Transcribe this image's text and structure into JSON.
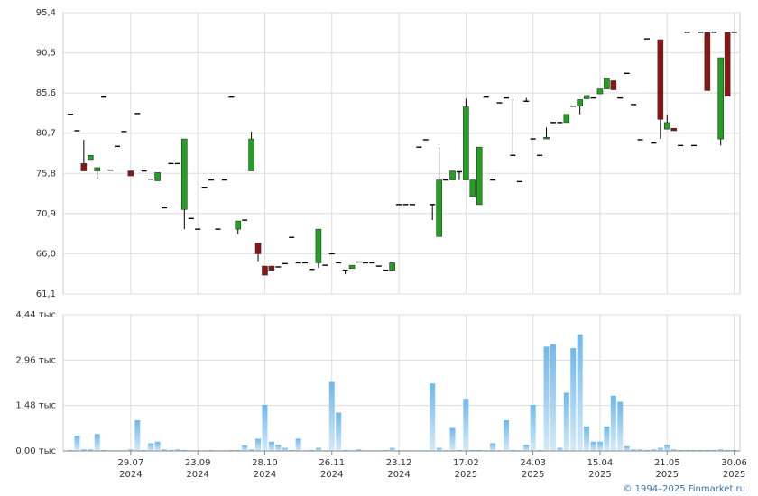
{
  "chart_data": [
    {
      "type": "candlestick",
      "categories": [
        null,
        null,
        null,
        null,
        null,
        null,
        null,
        null,
        null,
        "29.07",
        null,
        null,
        null,
        null,
        null,
        null,
        null,
        null,
        null,
        "23.09",
        null,
        null,
        null,
        null,
        null,
        null,
        null,
        null,
        null,
        "28.10",
        null,
        null,
        null,
        null,
        null,
        null,
        null,
        null,
        null,
        "26.11",
        null,
        null,
        null,
        null,
        null,
        null,
        null,
        null,
        null,
        "23.12",
        null,
        null,
        null,
        null,
        null,
        null,
        null,
        null,
        null,
        "17.02",
        null,
        null,
        null,
        null,
        null,
        null,
        null,
        null,
        null,
        "24.03",
        null,
        null,
        null,
        null,
        null,
        null,
        null,
        null,
        null,
        "15.04",
        null,
        null,
        null,
        null,
        null,
        null,
        null,
        null,
        null,
        "21.05",
        null,
        null,
        null,
        null,
        null,
        null,
        null,
        null,
        null,
        "30.06"
      ],
      "years": [
        null,
        null,
        null,
        null,
        null,
        null,
        null,
        null,
        null,
        "2024",
        null,
        null,
        null,
        null,
        null,
        null,
        null,
        null,
        null,
        "2024",
        null,
        null,
        null,
        null,
        null,
        null,
        null,
        null,
        null,
        "2024",
        null,
        null,
        null,
        null,
        null,
        null,
        null,
        null,
        null,
        "2024",
        null,
        null,
        null,
        null,
        null,
        null,
        null,
        null,
        null,
        "2024",
        null,
        null,
        null,
        null,
        null,
        null,
        null,
        null,
        null,
        "2025",
        null,
        null,
        null,
        null,
        null,
        null,
        null,
        null,
        null,
        "2025",
        null,
        null,
        null,
        null,
        null,
        null,
        null,
        null,
        null,
        "2025",
        null,
        null,
        null,
        null,
        null,
        null,
        null,
        null,
        null,
        "2025",
        null,
        null,
        null,
        null,
        null,
        null,
        null,
        null,
        null,
        "2025"
      ],
      "open": [
        83.0,
        81.0,
        77.0,
        77.5,
        76.1,
        85.1,
        76.2,
        79.1,
        80.9,
        76.1,
        83.1,
        76.1,
        75.1,
        74.9,
        71.6,
        77.0,
        77.0,
        71.4,
        70.3,
        69.0,
        74.1,
        75.0,
        69.0,
        75.0,
        85.1,
        69.0,
        70.1,
        76.1,
        67.3,
        64.5,
        64.5,
        64.4,
        64.8,
        68.0,
        64.9,
        64.9,
        64.1,
        64.9,
        64.6,
        66.0,
        64.9,
        64.0,
        64.2,
        65.0,
        64.9,
        64.9,
        64.5,
        64.0,
        64.0,
        72.0,
        72.0,
        72.0,
        79.0,
        79.9,
        72.0,
        68.1,
        75.0,
        75.0,
        76.0,
        75.0,
        73.0,
        72.0,
        85.1,
        75.0,
        84.4,
        85.0,
        78.0,
        74.8,
        84.6,
        80.0,
        78.0,
        80.0,
        82.0,
        82.0,
        82.0,
        84.0,
        84.0,
        84.9,
        85.0,
        85.5,
        86.1,
        87.1,
        85.0,
        88.0,
        84.2,
        79.9,
        92.2,
        79.5,
        92.1,
        81.2,
        81.3,
        79.2,
        93.0,
        79.2,
        93.0,
        93.0,
        93.0,
        80.0,
        93.0,
        93.0
      ],
      "high": [
        83.0,
        81.0,
        79.9,
        78.0,
        76.5,
        85.1,
        76.2,
        79.1,
        80.9,
        76.1,
        83.1,
        76.1,
        75.1,
        75.9,
        71.6,
        77.0,
        77.0,
        80.0,
        70.3,
        69.0,
        74.1,
        75.0,
        69.0,
        75.0,
        85.1,
        70.0,
        70.1,
        80.9,
        67.3,
        64.5,
        64.5,
        64.4,
        64.8,
        68.0,
        64.9,
        64.9,
        64.1,
        69.0,
        64.6,
        66.0,
        64.9,
        64.0,
        64.6,
        65.0,
        64.9,
        64.9,
        64.5,
        64.0,
        64.9,
        72.0,
        72.0,
        72.0,
        79.0,
        79.9,
        72.0,
        79.0,
        75.0,
        76.1,
        76.0,
        84.9,
        75.0,
        79.0,
        85.1,
        75.0,
        84.4,
        85.0,
        84.9,
        74.8,
        85.0,
        80.0,
        78.0,
        81.4,
        82.0,
        82.0,
        83.0,
        84.0,
        84.8,
        85.3,
        85.0,
        86.1,
        87.4,
        87.1,
        85.0,
        88.0,
        84.2,
        79.9,
        92.2,
        79.5,
        92.1,
        82.9,
        81.3,
        79.2,
        93.0,
        79.2,
        93.0,
        93.0,
        93.0,
        89.9,
        93.0,
        93.0
      ],
      "low": [
        83.0,
        81.0,
        76.1,
        77.5,
        75.1,
        85.1,
        76.2,
        79.1,
        80.9,
        75.5,
        83.1,
        76.1,
        75.1,
        74.9,
        71.6,
        77.0,
        77.0,
        69.0,
        70.3,
        69.0,
        74.1,
        75.0,
        69.0,
        75.0,
        85.1,
        68.4,
        70.1,
        76.1,
        65.1,
        63.4,
        64.0,
        64.4,
        64.8,
        68.0,
        64.9,
        64.9,
        64.1,
        64.3,
        64.6,
        66.0,
        64.9,
        63.5,
        64.2,
        65.0,
        64.9,
        64.9,
        64.5,
        64.0,
        64.0,
        72.0,
        72.0,
        72.0,
        79.0,
        79.9,
        70.1,
        68.1,
        75.0,
        75.0,
        75.0,
        75.0,
        73.0,
        72.0,
        85.1,
        75.0,
        84.4,
        85.0,
        78.0,
        74.8,
        84.6,
        80.0,
        78.0,
        80.0,
        82.0,
        82.0,
        82.0,
        84.0,
        83.0,
        84.9,
        85.0,
        85.5,
        86.1,
        86.0,
        85.0,
        88.0,
        84.2,
        79.9,
        92.2,
        79.5,
        80.0,
        81.2,
        81.0,
        79.2,
        93.0,
        79.2,
        93.0,
        85.9,
        93.0,
        79.2,
        85.2,
        93.0
      ],
      "close": [
        83.0,
        81.0,
        76.1,
        78.0,
        76.5,
        85.1,
        76.2,
        79.1,
        80.9,
        75.5,
        83.1,
        76.1,
        75.1,
        75.9,
        71.6,
        77.0,
        77.0,
        80.0,
        70.3,
        69.0,
        74.1,
        75.0,
        69.0,
        75.0,
        85.1,
        70.0,
        70.1,
        80.0,
        66.0,
        63.4,
        64.0,
        64.4,
        64.8,
        68.0,
        64.9,
        64.9,
        64.1,
        69.0,
        64.6,
        66.0,
        64.9,
        64.0,
        64.6,
        65.0,
        64.9,
        64.9,
        64.5,
        64.0,
        64.9,
        72.0,
        72.0,
        72.0,
        79.0,
        79.9,
        72.0,
        75.0,
        75.0,
        76.1,
        76.0,
        83.9,
        75.0,
        79.0,
        85.1,
        75.0,
        84.4,
        85.0,
        78.0,
        74.8,
        84.6,
        80.0,
        78.0,
        80.2,
        82.0,
        82.0,
        83.0,
        84.0,
        84.8,
        85.3,
        85.0,
        86.1,
        87.4,
        86.0,
        85.0,
        88.0,
        84.2,
        79.9,
        92.2,
        79.5,
        82.4,
        82.0,
        81.0,
        79.2,
        93.0,
        79.2,
        93.0,
        85.9,
        93.0,
        89.9,
        85.2,
        93.0
      ],
      "up_color": "#22a022",
      "down_color": "#8b1414",
      "flat_color": "#000000",
      "ylim": [
        61.1,
        95.4
      ],
      "yticks": [
        {
          "value": 61.1,
          "label": "61,1"
        },
        {
          "value": 66.0,
          "label": "66,0"
        },
        {
          "value": 70.9,
          "label": "70,9"
        },
        {
          "value": 75.8,
          "label": "75,8"
        },
        {
          "value": 80.7,
          "label": "80,7"
        },
        {
          "value": 85.6,
          "label": "85,6"
        },
        {
          "value": 90.5,
          "label": "90,5"
        },
        {
          "value": 95.4,
          "label": "95,4"
        }
      ],
      "grid": true
    },
    {
      "type": "bar",
      "values": [
        0.03,
        0.5,
        0.05,
        0.05,
        0.55,
        0.03,
        0.02,
        0.02,
        0.02,
        0.05,
        1.0,
        0.03,
        0.25,
        0.3,
        0.05,
        0.03,
        0.05,
        0.03,
        0.02,
        0.02,
        0.02,
        0.03,
        0.02,
        0.02,
        0.03,
        0.03,
        0.18,
        0.05,
        0.4,
        1.5,
        0.3,
        0.2,
        0.1,
        0.03,
        0.4,
        0.02,
        0.03,
        0.1,
        0.02,
        2.25,
        1.25,
        0.03,
        0.02,
        0.05,
        0.02,
        0.02,
        0.02,
        0.03,
        0.1,
        0.02,
        0.02,
        0.02,
        0.02,
        0.02,
        2.2,
        0.1,
        0.02,
        0.75,
        0.03,
        1.7,
        0.03,
        0.03,
        0.02,
        0.25,
        0.02,
        1.0,
        0.03,
        0.02,
        0.2,
        1.5,
        0.03,
        3.4,
        3.48,
        0.1,
        1.9,
        3.35,
        3.8,
        0.8,
        0.3,
        0.3,
        0.8,
        1.8,
        1.6,
        0.15,
        0.05,
        0.05,
        0.03,
        0.05,
        0.1,
        0.2,
        0.05,
        0.03,
        0.03,
        0.03,
        0.03,
        0.03,
        0.03,
        0.05,
        0.03,
        0.03
      ],
      "color": "#8cc8f0",
      "ylim": [
        0,
        4.44
      ],
      "yticks": [
        {
          "value": 0,
          "label": "0,00 тыс"
        },
        {
          "value": 1.48,
          "label": "1,48 тыс"
        },
        {
          "value": 2.96,
          "label": "2,96 тыс"
        },
        {
          "value": 4.44,
          "label": "4,44 тыс"
        }
      ],
      "grid": true
    }
  ],
  "footer": "© 1994–2025 Finmarket.ru"
}
